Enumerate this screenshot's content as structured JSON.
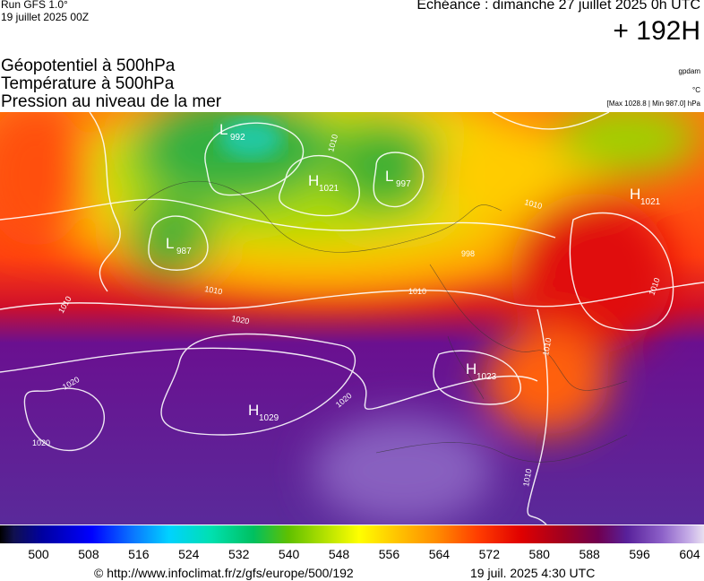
{
  "header": {
    "run": "Run GFS 1.0°",
    "date": "19 juillet 2025 00Z",
    "echeance": "Echéance : dimanche 27 juillet 2025 0h UTC",
    "horizon": "+ 192H"
  },
  "titles": [
    "Géopotentiel à 500hPa",
    "Température à 500hPa",
    "Pression au niveau de la mer"
  ],
  "units": {
    "geopotential": "gpdam",
    "temperature": "°C",
    "pressure": "[Max 1028.8 | Min 987.0] hPa"
  },
  "centers": [
    {
      "letter": "L",
      "value": "992"
    },
    {
      "letter": "H",
      "value": "1021"
    },
    {
      "letter": "L",
      "value": "997"
    },
    {
      "letter": "L",
      "value": "987"
    },
    {
      "letter": "H",
      "value": "1021"
    },
    {
      "letter": "H",
      "value": "1023"
    },
    {
      "letter": "H",
      "value": "1029"
    }
  ],
  "isobar_labels": [
    "1010",
    "1010",
    "1010",
    "1010",
    "1010",
    "1010",
    "1010",
    "1020",
    "1020",
    "1020",
    "1020",
    "998",
    "1010"
  ],
  "colorbar": {
    "labels": [
      "500",
      "508",
      "516",
      "524",
      "532",
      "540",
      "548",
      "556",
      "564",
      "572",
      "580",
      "588",
      "596",
      "604"
    ]
  },
  "footer": {
    "url": "© http://www.infoclimat.fr/z/gfs/europe/500/192",
    "timestamp": "19 juil. 2025  4:30 UTC"
  }
}
